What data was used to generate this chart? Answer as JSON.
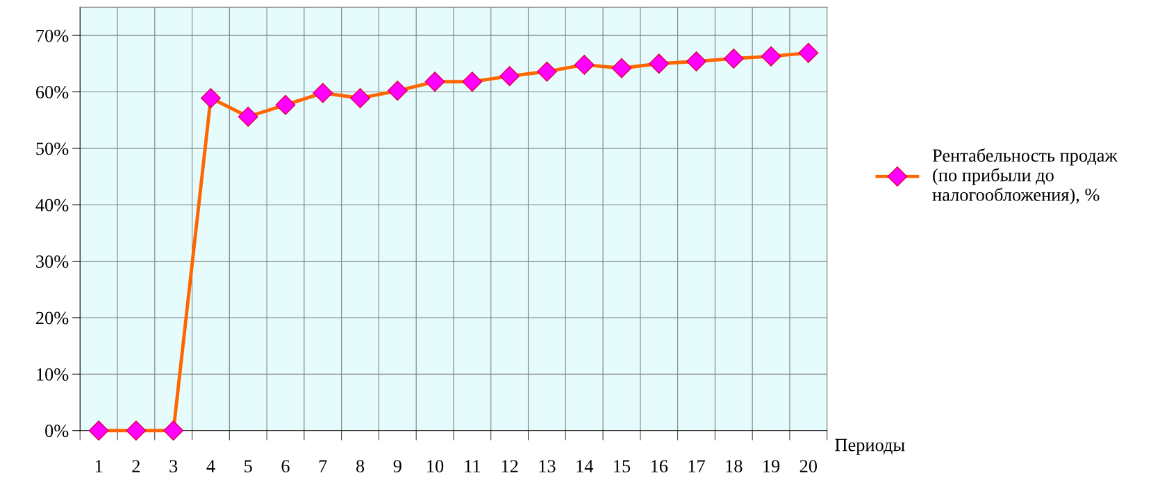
{
  "chart_data": {
    "type": "line",
    "xlabel": "Периоды",
    "categories": [
      "1",
      "2",
      "3",
      "4",
      "5",
      "6",
      "7",
      "8",
      "9",
      "10",
      "11",
      "12",
      "13",
      "14",
      "15",
      "16",
      "17",
      "18",
      "19",
      "20"
    ],
    "series": [
      {
        "name": "Рентабельность продаж\n(по прибыли до\nналогообложения), %",
        "color": "#ff6600",
        "values": [
          0,
          0,
          0,
          58.9,
          55.6,
          57.7,
          59.8,
          58.9,
          60.2,
          61.8,
          61.8,
          62.8,
          63.6,
          64.8,
          64.2,
          65.0,
          65.4,
          65.9,
          66.3,
          66.9
        ]
      }
    ],
    "ylim": [
      0,
      75
    ],
    "yticks": [
      {
        "value": 0,
        "label": "0%"
      },
      {
        "value": 10,
        "label": "10%"
      },
      {
        "value": 20,
        "label": "20%"
      },
      {
        "value": 30,
        "label": "30%"
      },
      {
        "value": 40,
        "label": "40%"
      },
      {
        "value": 50,
        "label": "50%"
      },
      {
        "value": 60,
        "label": "60%"
      },
      {
        "value": 70,
        "label": "70%"
      }
    ],
    "grid": true,
    "legend": "right",
    "marker": "diamond",
    "line_style": "solid"
  }
}
